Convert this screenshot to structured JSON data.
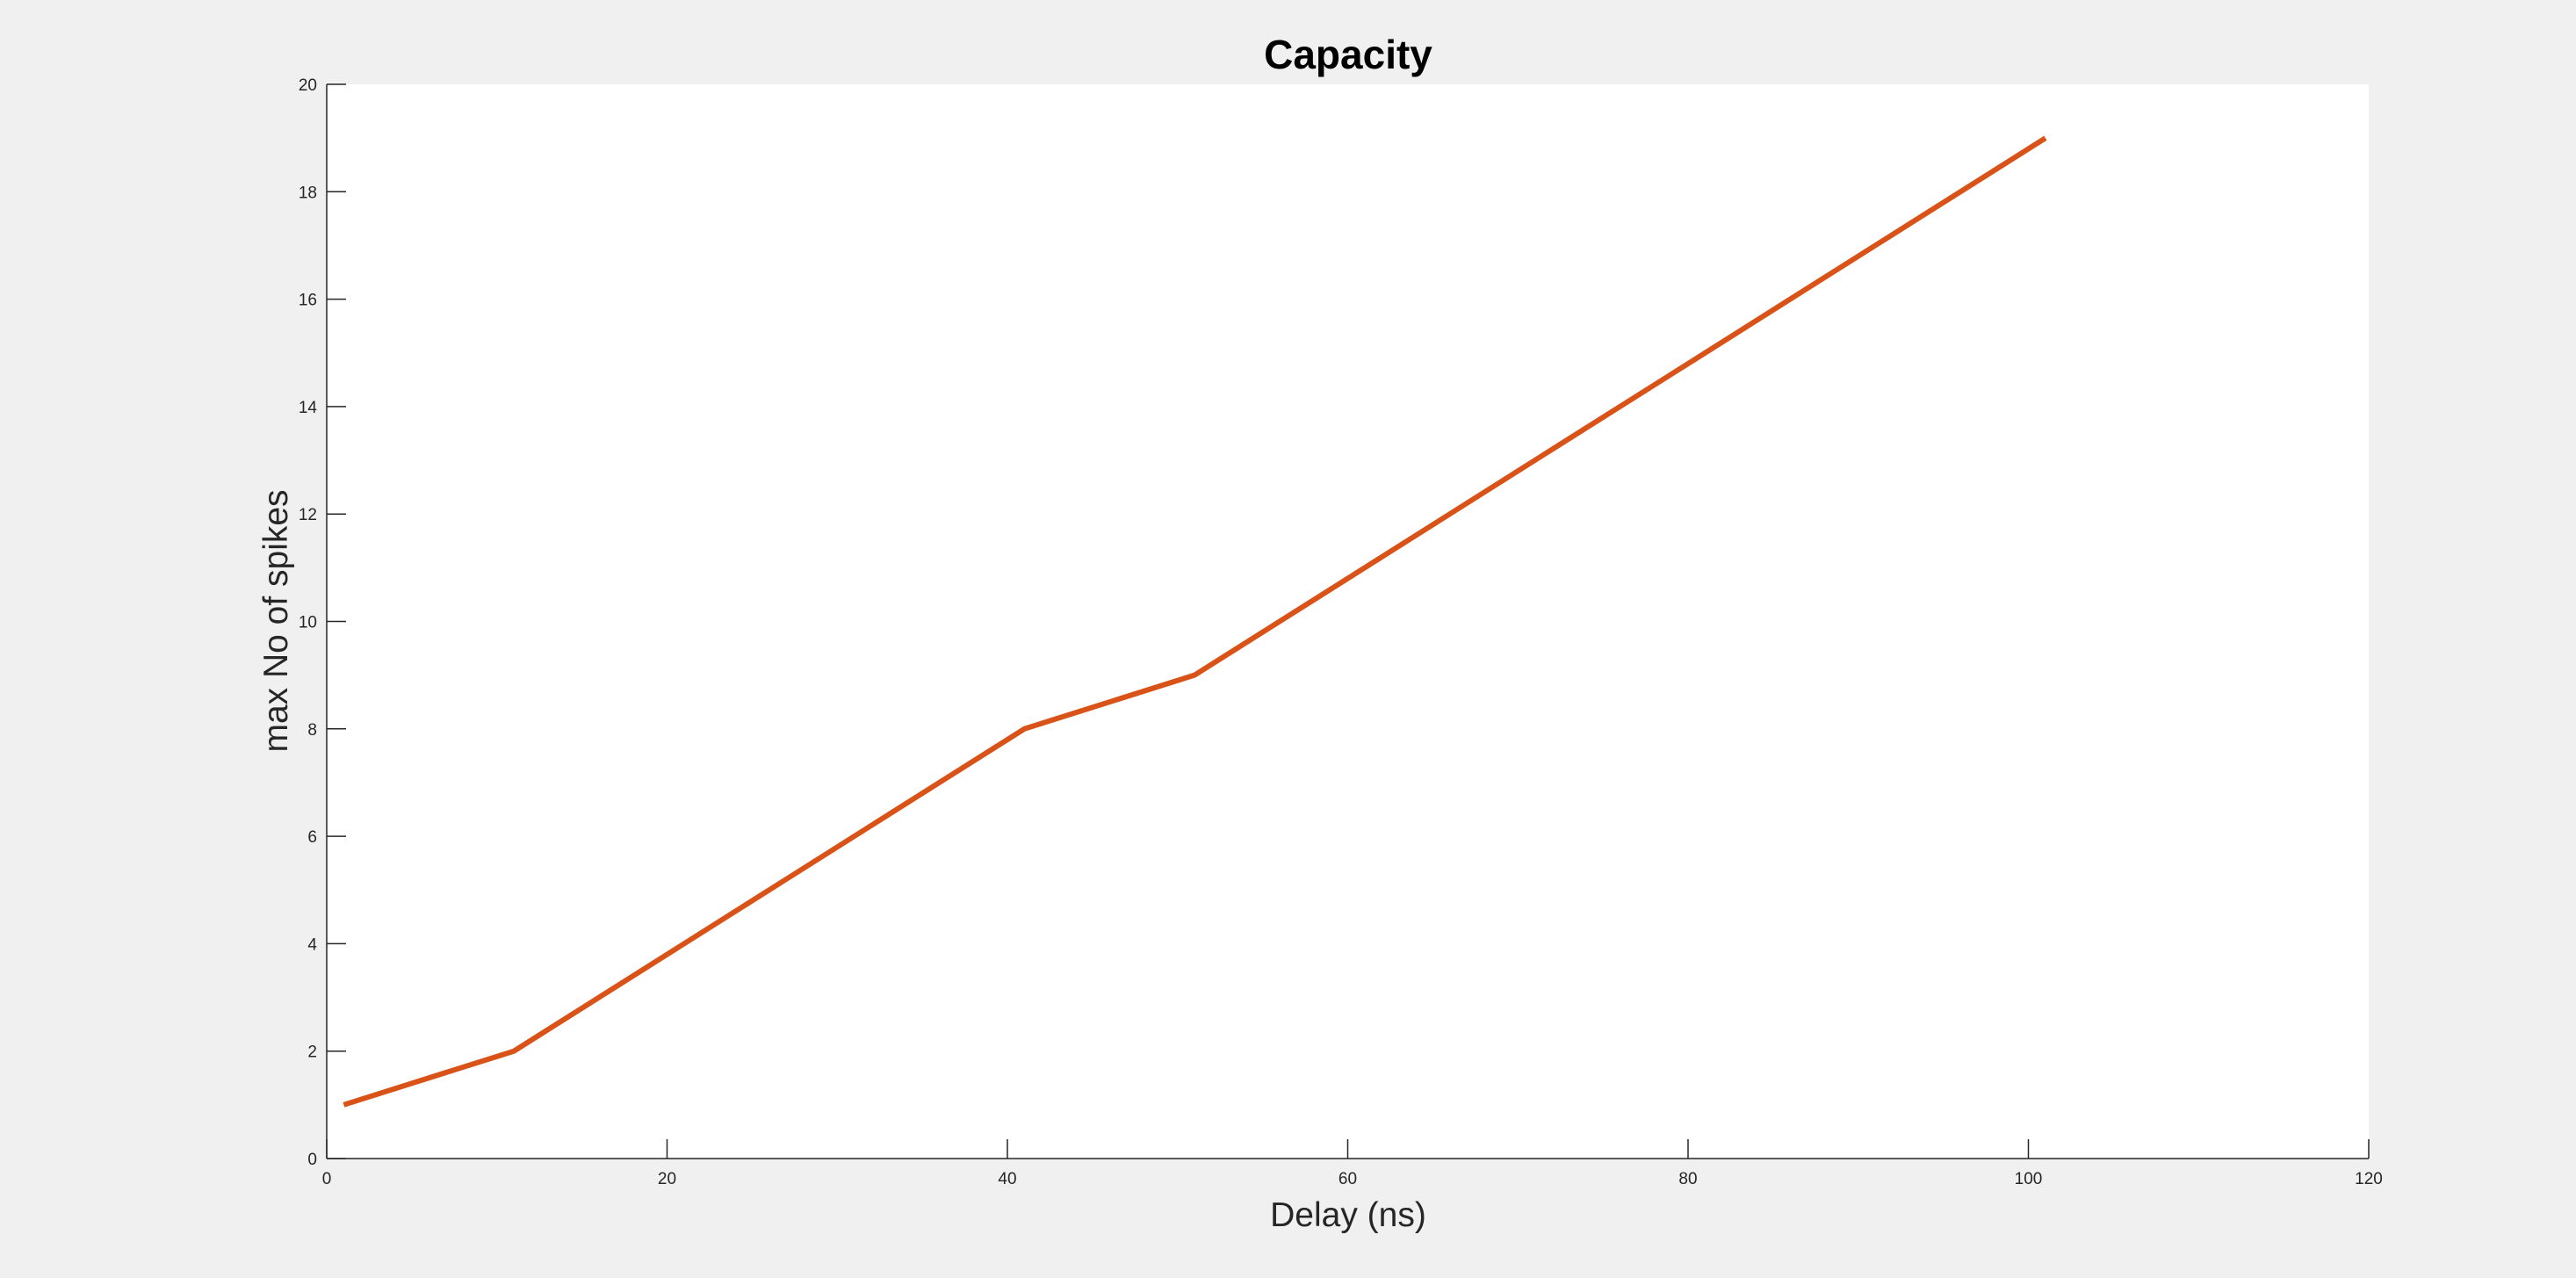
{
  "chart_data": {
    "type": "line",
    "title": "Capacity",
    "xlabel": "Delay (ns)",
    "ylabel": "max No of spikes",
    "xlim": [
      0,
      120
    ],
    "ylim": [
      0,
      20
    ],
    "xticks": [
      0,
      20,
      40,
      60,
      80,
      100,
      120
    ],
    "yticks": [
      0,
      2,
      4,
      6,
      8,
      10,
      12,
      14,
      16,
      18,
      20
    ],
    "grid": false,
    "legend": "none",
    "series": [
      {
        "color": "#d95319",
        "x": [
          1,
          11,
          21,
          31,
          41,
          51,
          61,
          71,
          81,
          91,
          101
        ],
        "y": [
          1,
          2,
          4,
          6,
          8,
          9,
          11,
          13,
          15,
          17,
          19
        ]
      }
    ]
  },
  "colors": {
    "figure_background": "#f0f0f0",
    "axes_background": "#ffffff",
    "axis_color": "#262626"
  }
}
